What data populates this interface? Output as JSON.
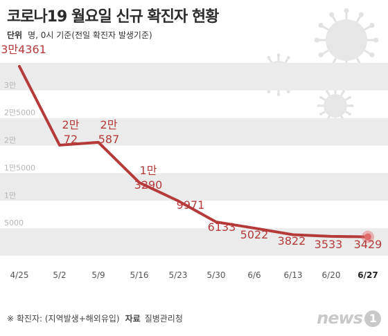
{
  "title": "코로나19 월요일 신규 확진자 현황",
  "unit_label": "단위",
  "unit_text": "명, 0시 기준(전일 확진자 발생기준)",
  "footer": {
    "note": "※ 확진자: (지역발생+해외유입)",
    "source_label": "자료",
    "source_text": "질병관리청"
  },
  "logo": {
    "text": "news",
    "badge": "1"
  },
  "colors": {
    "line": "#b53a3a",
    "label": "#b53a3a",
    "band": "#ebebeb",
    "highlight": "#e06b6b",
    "text": "#333333"
  },
  "chart_data": {
    "type": "line",
    "title": "코로나19 월요일 신규 확진자 현황",
    "categories": [
      "4/25",
      "5/2",
      "5/9",
      "5/16",
      "5/23",
      "5/30",
      "6/6",
      "6/13",
      "6/20",
      "6/27"
    ],
    "values": [
      34361,
      20072,
      20587,
      13290,
      9971,
      6133,
      5022,
      3822,
      3533,
      3429
    ],
    "data_labels": [
      "3만4361",
      "2만\n72",
      "2만\n587",
      "1만\n3290",
      "9971",
      "6133",
      "5022",
      "3822",
      "3533",
      "3429"
    ],
    "ylim": [
      0,
      35000
    ],
    "yticks": [
      0,
      5000,
      10000,
      15000,
      20000,
      25000,
      30000
    ],
    "ytick_labels": [
      "",
      "5000",
      "1만",
      "1만5000",
      "2만",
      "2만5000",
      "3만"
    ],
    "grid": "alternating horizontal bands",
    "highlight_category": "6/27"
  }
}
